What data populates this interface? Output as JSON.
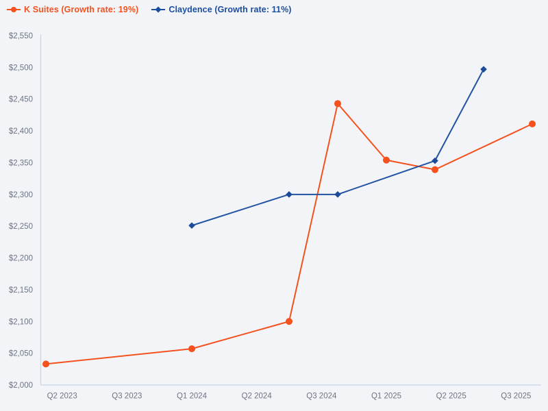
{
  "window": {
    "background": "#f2f4f7"
  },
  "legend": {
    "position": "top-left",
    "items": [
      {
        "label": "K Suites (Growth rate: 19%)",
        "series": "K Suites",
        "color": "#f4511e",
        "marker": "circle"
      },
      {
        "label": "Claydence (Growth rate: 11%)",
        "series": "Claydence",
        "color": "#1b4d9f",
        "marker": "diamond"
      }
    ]
  },
  "chart_data": {
    "type": "line",
    "title": "",
    "xlabel": "",
    "ylabel": "",
    "grid": false,
    "legend_position": "top-left",
    "x_axis": {
      "type": "time",
      "unit": "months_after_first_point",
      "tick_labels": [
        "Q2 2023",
        "Q3 2023",
        "Q1 2024",
        "Q2 2024",
        "Q3 2024",
        "Q1 2025",
        "Q2 2025",
        "Q3 2025"
      ],
      "tick_positions": [
        1,
        5,
        9,
        13,
        17,
        21,
        25,
        29
      ],
      "range": [
        -0.33,
        30.55
      ]
    },
    "y_axis": {
      "min": 2000,
      "max": 2550,
      "step": 50,
      "format_prefix": "$",
      "tick_labels": [
        "$2,000",
        "$2,050",
        "$2,100",
        "$2,150",
        "$2,200",
        "$2,250",
        "$2,300",
        "$2,350",
        "$2,400",
        "$2,450",
        "$2,500",
        "$2,550"
      ]
    },
    "series": [
      {
        "name": "K Suites",
        "growth_rate": "19%",
        "color": "#f4511e",
        "marker": "circle",
        "points": [
          [
            0,
            2033
          ],
          [
            9,
            2057
          ],
          [
            15,
            2100
          ],
          [
            18,
            2443
          ],
          [
            21,
            2354
          ],
          [
            24,
            2339
          ],
          [
            30,
            2411
          ]
        ]
      },
      {
        "name": "Claydence",
        "growth_rate": "11%",
        "color": "#2253a3",
        "marker": "diamond",
        "marker_fill": "#1d4b9a",
        "points": [
          [
            9,
            2251
          ],
          [
            15,
            2300
          ],
          [
            18,
            2300
          ],
          [
            24,
            2353
          ],
          [
            27,
            2497
          ]
        ]
      }
    ]
  },
  "colors": {
    "axis_line": "#c7d3e8",
    "tick_text": "#6d7483",
    "background": "#f2f4f7"
  }
}
